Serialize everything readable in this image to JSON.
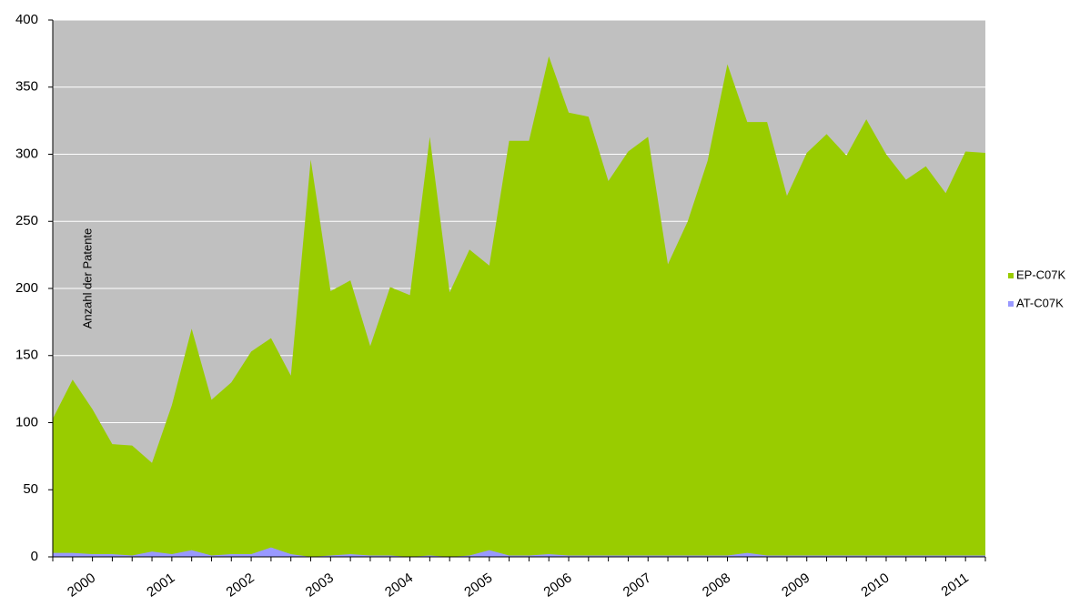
{
  "chart_data": {
    "type": "area",
    "y_label": "Anzahl der Patente",
    "categories": [
      null,
      null,
      "2000",
      null,
      null,
      null,
      "2001",
      null,
      null,
      null,
      "2002",
      null,
      null,
      null,
      "2003",
      null,
      null,
      null,
      "2004",
      null,
      null,
      null,
      "2005",
      null,
      null,
      null,
      "2006",
      null,
      null,
      null,
      "2007",
      null,
      null,
      null,
      "2008",
      null,
      null,
      null,
      "2009",
      null,
      null,
      null,
      "2010",
      null,
      null,
      null,
      "2011",
      null
    ],
    "series": [
      {
        "name": "EP-C07K",
        "color": "#99cc00",
        "values": [
          103,
          132,
          110,
          84,
          83,
          70,
          113,
          170,
          117,
          130,
          153,
          163,
          135,
          296,
          198,
          206,
          157,
          201,
          195,
          313,
          197,
          229,
          217,
          310,
          310,
          373,
          331,
          328,
          280,
          302,
          313,
          218,
          250,
          295,
          367,
          324,
          324,
          269,
          301,
          315,
          299,
          326,
          300,
          281,
          291,
          271,
          302,
          301
        ]
      },
      {
        "name": "AT-C07K",
        "color": "#9999ff",
        "values": [
          3,
          3,
          2,
          2,
          1,
          4,
          2,
          5,
          1,
          2,
          2,
          7,
          2,
          0,
          1,
          2,
          1,
          1,
          0,
          1,
          0,
          1,
          5,
          1,
          1,
          2,
          1,
          1,
          1,
          1,
          1,
          1,
          1,
          1,
          1,
          3,
          1,
          1,
          1,
          1,
          1,
          1,
          1,
          1,
          1,
          1,
          1,
          1
        ]
      }
    ],
    "ylim": [
      0,
      400
    ],
    "yticks": [
      0,
      50,
      100,
      150,
      200,
      250,
      300,
      350,
      400
    ],
    "grid": true,
    "background": "#c0c0c0",
    "legend": "right"
  }
}
